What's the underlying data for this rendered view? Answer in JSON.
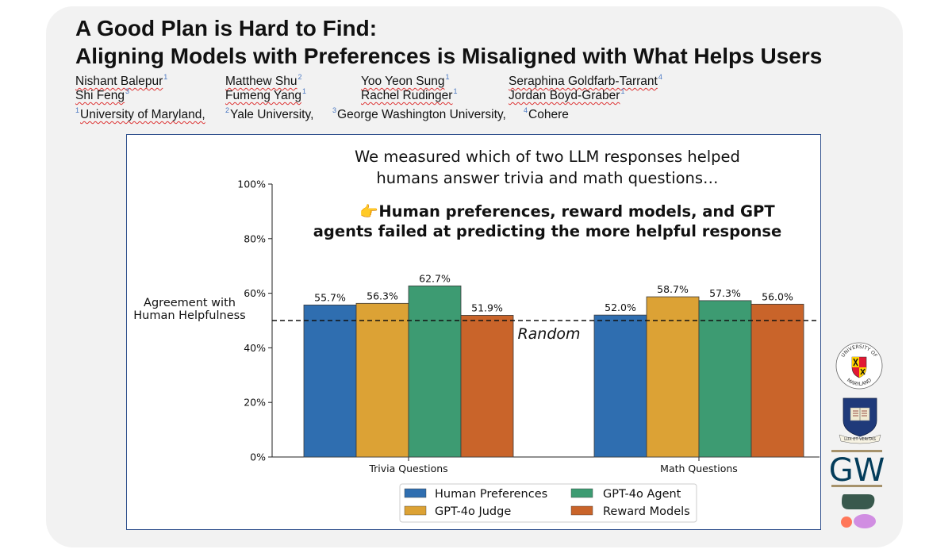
{
  "paper": {
    "title_line1": "A Good Plan is Hard to Find:",
    "title_line2": "Aligning Models with Preferences is Misaligned with What Helps Users",
    "authors": [
      {
        "name": "Nishant Balepur",
        "sup": "1"
      },
      {
        "name": "Matthew Shu",
        "sup": "2"
      },
      {
        "name": "Yoo Yeon Sung",
        "sup": "1"
      },
      {
        "name": "Seraphina Goldfarb-Tarrant",
        "sup": "4"
      },
      {
        "name": "Shi Feng",
        "sup": "3"
      },
      {
        "name": "Fumeng Yang",
        "sup": "1"
      },
      {
        "name": "Rachel Rudinger",
        "sup": "1"
      },
      {
        "name": "Jordan Boyd-Graber",
        "sup": "1"
      }
    ],
    "affiliations": [
      {
        "sup": "1",
        "name": "University of Maryland,"
      },
      {
        "sup": "2",
        "name": "Yale University,"
      },
      {
        "sup": "3",
        "name": "George Washington University,"
      },
      {
        "sup": "4",
        "name": "Cohere"
      }
    ]
  },
  "chart_data": {
    "type": "bar",
    "title": "",
    "annotation_line1": "We measured which of two LLM responses helped",
    "annotation_line2": "humans answer trivia and math questions…",
    "highlight_icon": "👉",
    "highlight_line1": "Human preferences, reward models, and GPT",
    "highlight_line2": "agents failed at predicting the more helpful response",
    "ylabel_line1": "Agreement with",
    "ylabel_line2": "Human Helpfulness",
    "xlabel": "",
    "categories": [
      "Trivia Questions",
      "Math Questions"
    ],
    "series": [
      {
        "name": "Human Preferences",
        "color": "#2f6eb0",
        "values": [
          55.7,
          52.0
        ]
      },
      {
        "name": "GPT-4o Judge",
        "color": "#dca235",
        "values": [
          56.3,
          58.7
        ]
      },
      {
        "name": "GPT-4o Agent",
        "color": "#3d9b72",
        "values": [
          62.7,
          57.3
        ]
      },
      {
        "name": "Reward Models",
        "color": "#c9642a",
        "values": [
          51.9,
          56.0
        ]
      }
    ],
    "ylim": [
      0,
      100
    ],
    "yticks": [
      0,
      20,
      40,
      60,
      80,
      100
    ],
    "yticklabels": [
      "0%",
      "20%",
      "40%",
      "60%",
      "80%",
      "100%"
    ],
    "reference_line": {
      "value": 50,
      "label": "Random",
      "style": "dashed"
    },
    "value_labels": [
      "55.7%",
      "56.3%",
      "62.7%",
      "51.9%",
      "52.0%",
      "58.7%",
      "57.3%",
      "56.0%"
    ],
    "legend_position": "bottom-center",
    "grid": false
  },
  "logos": [
    {
      "name": "University of Maryland",
      "icon": "umd-seal-icon"
    },
    {
      "name": "Yale University",
      "icon": "yale-shield-icon",
      "motto": "LUX ET VERITAS"
    },
    {
      "name": "George Washington University",
      "icon": "gw-logo-icon",
      "text": "GW"
    },
    {
      "name": "Cohere",
      "icon": "cohere-logo-icon"
    }
  ],
  "umd_text": {
    "top": "UNIVERSITY OF",
    "bottom": "MARYLAND"
  }
}
